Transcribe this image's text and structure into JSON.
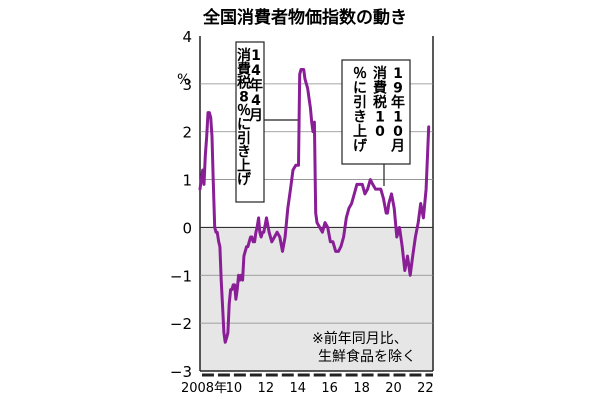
{
  "chart_data": {
    "type": "line",
    "title": "全国消費者物価指数の動き",
    "y_unit": "%",
    "ylim": [
      -3,
      4
    ],
    "y_ticks": [
      "4",
      "3",
      "2",
      "1",
      "0",
      "−1",
      "−2",
      "−3"
    ],
    "x_ticks": [
      "2008年",
      "10",
      "12",
      "14",
      "16",
      "18",
      "20",
      "22"
    ],
    "xlim": [
      2008.0,
      2022.6
    ],
    "grid": true,
    "negative_region_shaded": true,
    "line_color": "#8a1e96",
    "shade_color": "#e6e6e6",
    "series": [
      {
        "x": [
          2008.0,
          2008.08,
          2008.17,
          2008.25,
          2008.33,
          2008.42,
          2008.5,
          2008.58,
          2008.67,
          2008.75,
          2008.83,
          2008.92,
          2009.0,
          2009.08,
          2009.17,
          2009.25,
          2009.33,
          2009.42,
          2009.5,
          2009.58,
          2009.67,
          2009.75,
          2009.83,
          2009.92,
          2010.0,
          2010.08,
          2010.17,
          2010.25,
          2010.33,
          2010.42,
          2010.5,
          2010.58,
          2010.67,
          2010.75,
          2010.83,
          2010.92,
          2011.0,
          2011.08,
          2011.17,
          2011.25,
          2011.33,
          2011.42,
          2011.5,
          2011.58,
          2011.67,
          2011.75,
          2011.83,
          2011.92,
          2012.0,
          2012.17,
          2012.33,
          2012.5,
          2012.67,
          2012.83,
          2013.0,
          2013.17,
          2013.33,
          2013.5,
          2013.67,
          2013.83,
          2014.0,
          2014.17,
          2014.25,
          2014.33,
          2014.42,
          2014.5,
          2014.58,
          2014.67,
          2014.75,
          2014.83,
          2014.92,
          2015.0,
          2015.08,
          2015.17,
          2015.25,
          2015.33,
          2015.5,
          2015.67,
          2015.83,
          2016.0,
          2016.17,
          2016.33,
          2016.5,
          2016.67,
          2016.83,
          2017.0,
          2017.17,
          2017.33,
          2017.5,
          2017.67,
          2017.83,
          2018.0,
          2018.17,
          2018.33,
          2018.5,
          2018.67,
          2018.83,
          2019.0,
          2019.17,
          2019.33,
          2019.5,
          2019.67,
          2019.75,
          2019.83,
          2020.0,
          2020.17,
          2020.33,
          2020.5,
          2020.67,
          2020.83,
          2021.0,
          2021.17,
          2021.33,
          2021.5,
          2021.67,
          2021.83,
          2022.0,
          2022.17,
          2022.33
        ],
        "y": [
          0.8,
          1.0,
          1.2,
          0.9,
          1.5,
          1.9,
          2.4,
          2.4,
          2.3,
          1.9,
          1.0,
          0.0,
          -0.1,
          -0.1,
          -0.3,
          -0.4,
          -1.1,
          -1.7,
          -2.2,
          -2.4,
          -2.3,
          -2.2,
          -1.6,
          -1.3,
          -1.3,
          -1.2,
          -1.2,
          -1.5,
          -1.3,
          -1.0,
          -1.1,
          -1.0,
          -1.1,
          -0.6,
          -0.5,
          -0.4,
          -0.4,
          -0.3,
          -0.2,
          -0.2,
          -0.3,
          -0.3,
          -0.1,
          0.0,
          0.2,
          -0.1,
          -0.2,
          -0.1,
          -0.1,
          0.2,
          -0.1,
          -0.3,
          -0.2,
          -0.1,
          -0.2,
          -0.5,
          -0.2,
          0.4,
          0.8,
          1.2,
          1.3,
          1.3,
          3.2,
          3.3,
          3.3,
          3.3,
          3.1,
          3.0,
          2.9,
          2.7,
          2.5,
          2.2,
          2.0,
          2.2,
          0.3,
          0.1,
          0.0,
          -0.1,
          0.1,
          0.0,
          -0.3,
          -0.3,
          -0.5,
          -0.5,
          -0.4,
          -0.2,
          0.2,
          0.4,
          0.5,
          0.7,
          0.9,
          0.9,
          0.9,
          0.7,
          0.8,
          1.0,
          0.9,
          0.8,
          0.8,
          0.8,
          0.6,
          0.3,
          0.3,
          0.5,
          0.7,
          0.4,
          -0.2,
          0.0,
          -0.4,
          -0.9,
          -0.6,
          -1.0,
          -0.6,
          -0.2,
          0.1,
          0.5,
          0.2,
          0.8,
          2.1
        ]
      }
    ],
    "annotations": [
      {
        "id": "tax2014",
        "lines": [
          "14年4月",
          "消費税8％に引き上げ"
        ]
      },
      {
        "id": "tax2019",
        "lines": [
          "19年10月",
          "消費税10％に引き上げ"
        ]
      },
      {
        "id": "note",
        "lines": [
          "※前年同月比、",
          "生鮮食品を除く"
        ]
      }
    ]
  }
}
